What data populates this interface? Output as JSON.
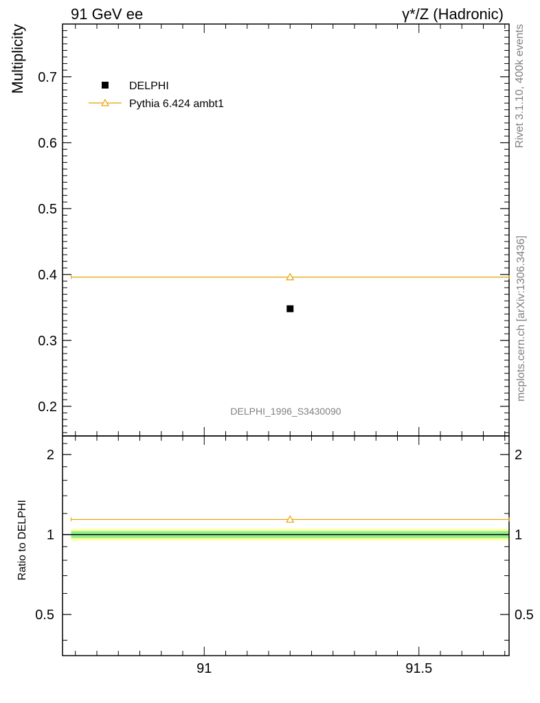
{
  "header": {
    "left_title": "91 GeV ee",
    "right_title": "γ*/Z (Hadronic)"
  },
  "side_labels": {
    "rivet": "Rivet 3.1.10,  400k events",
    "mcplots": "mcplots.cern.ch [arXiv:1306.3436]"
  },
  "analysis_id": "DELPHI_1996_S3430090",
  "colors": {
    "data": "#000000",
    "mc": "#e8a000",
    "band_inner": "#90ee90",
    "band_outer": "#ffff99"
  },
  "chart_data": [
    {
      "type": "scatter",
      "ylabel": "Multiplicity",
      "xlim": [
        90.67,
        91.71
      ],
      "ylim": [
        0.155,
        0.78
      ],
      "yticks": [
        0.2,
        0.3,
        0.4,
        0.5,
        0.6,
        0.7
      ],
      "ytick_labels": [
        "0.2",
        "0.3",
        "0.4",
        "0.5",
        "0.6",
        "0.7"
      ],
      "legend_position": "top-left",
      "series": [
        {
          "name": "DELPHI",
          "marker": "square",
          "x": [
            91.2
          ],
          "y": [
            0.348
          ]
        },
        {
          "name": "Pythia 6.424 ambt1",
          "marker": "open-triangle",
          "x": [
            91.2
          ],
          "y": [
            0.396
          ],
          "xerr": [
            90.69,
            91.71
          ]
        }
      ]
    },
    {
      "type": "scatter",
      "ylabel": "Ratio to DELPHI",
      "xlim": [
        90.67,
        91.71
      ],
      "ylim": [
        0.35,
        2.35
      ],
      "log_y": true,
      "yticks": [
        0.5,
        1,
        2
      ],
      "ytick_labels": [
        "0.5",
        "1",
        "2"
      ],
      "xticks": [
        91,
        91.5
      ],
      "xtick_labels": [
        "91",
        "91.5"
      ],
      "series": [
        {
          "name": "Pythia 6.424 ambt1",
          "x": [
            91.2
          ],
          "y": [
            1.14
          ]
        }
      ],
      "bands": [
        {
          "low": 0.95,
          "high": 1.05
        },
        {
          "low": 0.97,
          "high": 1.03
        }
      ]
    }
  ]
}
